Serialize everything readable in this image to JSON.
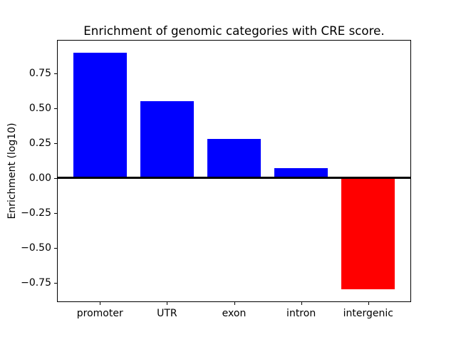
{
  "chart_data": {
    "type": "bar",
    "title": "Enrichment of genomic categories with CRE score.",
    "xlabel": "",
    "ylabel": "Enrichment (log10)",
    "categories": [
      "promoter",
      "UTR",
      "exon",
      "intron",
      "intergenic"
    ],
    "values": [
      0.9,
      0.55,
      0.28,
      0.07,
      -0.8
    ],
    "bar_colors": [
      "#0000ff",
      "#0000ff",
      "#0000ff",
      "#0000ff",
      "#ff0000"
    ],
    "bar_width": 0.8,
    "ylim": [
      -0.89,
      0.99
    ],
    "xlim": [
      -0.64,
      4.64
    ],
    "yticks": [
      {
        "value": 0.75,
        "label": "0.75"
      },
      {
        "value": 0.5,
        "label": "0.50"
      },
      {
        "value": 0.25,
        "label": "0.25"
      },
      {
        "value": 0.0,
        "label": "0.00"
      },
      {
        "value": -0.25,
        "label": "−0.25"
      },
      {
        "value": -0.5,
        "label": "−0.50"
      },
      {
        "value": -0.75,
        "label": "−0.75"
      }
    ],
    "zero_line": true,
    "zero_line_color": "#000000",
    "grid": false,
    "legend": null,
    "background": "#ffffff",
    "axis_color": "#000000"
  }
}
